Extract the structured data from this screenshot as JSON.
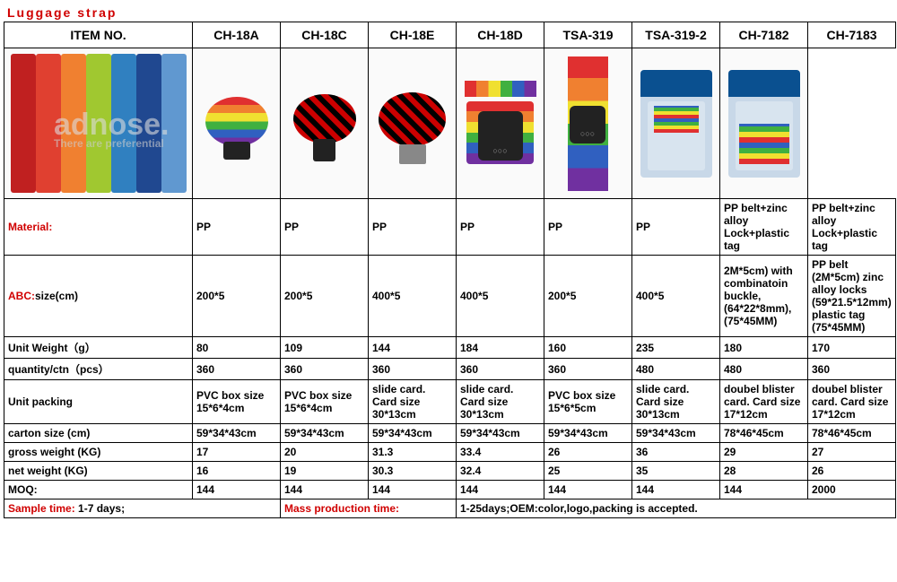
{
  "title": "Luggage strap",
  "colors": {
    "title": "#d00000",
    "border": "#000000",
    "label_red": "#d00000"
  },
  "columns": [
    "ITEM NO.",
    "CH-18A",
    "CH-18C",
    "CH-18E",
    "CH-18D",
    "TSA-319",
    "TSA-319-2",
    "CH-7182",
    "CH-7183"
  ],
  "rows": [
    {
      "label": "Material:",
      "label_red": true,
      "values": [
        "PP",
        "PP",
        "PP",
        "PP",
        "PP",
        "PP",
        "PP belt+zinc alloy Lock+plastic tag",
        "PP belt+zinc alloy Lock+plastic tag"
      ]
    },
    {
      "label": "ABC:size(cm)",
      "label_prefix": "ABC:",
      "label_suffix": "size(cm)",
      "label_red": true,
      "values": [
        "200*5",
        "200*5",
        "400*5",
        "400*5",
        "200*5",
        "400*5",
        "2M*5cm) with combinatoin buckle, (64*22*8mm), (75*45MM)",
        "PP belt (2M*5cm) zinc alloy locks (59*21.5*12mm) plastic tag (75*45MM)"
      ]
    },
    {
      "label": "Unit Weight（g）",
      "values": [
        "80",
        "109",
        "144",
        "184",
        "160",
        "235",
        "180",
        "170"
      ]
    },
    {
      "label": "quantity/ctn（pcs）",
      "values": [
        "360",
        "360",
        "360",
        "360",
        "360",
        "480",
        "480",
        "360"
      ]
    },
    {
      "label": "Unit packing",
      "values": [
        "PVC box size 15*6*4cm",
        "PVC box size 15*6*4cm",
        "slide card. Card size 30*13cm",
        "slide card. Card size 30*13cm",
        "PVC box size 15*6*5cm",
        "slide card. Card size 30*13cm",
        "doubel blister card. Card size 17*12cm",
        "doubel blister card. Card size 17*12cm"
      ]
    },
    {
      "label": "carton size (cm)",
      "values": [
        "59*34*43cm",
        "59*34*43cm",
        "59*34*43cm",
        "59*34*43cm",
        "59*34*43cm",
        "59*34*43cm",
        "78*46*45cm",
        "78*46*45cm"
      ]
    },
    {
      "label": "gross weight (KG)",
      "values": [
        "17",
        "20",
        "31.3",
        "33.4",
        "26",
        "36",
        "29",
        "27"
      ]
    },
    {
      "label": "net weight (KG)",
      "values": [
        "16",
        "19",
        "30.3",
        "32.4",
        "25",
        "35",
        "28",
        "26"
      ]
    },
    {
      "label": "MOQ:",
      "values": [
        "144",
        "144",
        "144",
        "144",
        "144",
        "144",
        "144",
        "2000"
      ]
    }
  ],
  "footer": {
    "sample_label": "Sample time:",
    "sample_value": " 1-7 days;",
    "mass_label": "Mass production time:",
    "mass_value": "1-25days;OEM:color,logo,packing is accepted."
  },
  "watermark": {
    "main": "adnose.",
    "sub": "There are preferential"
  }
}
